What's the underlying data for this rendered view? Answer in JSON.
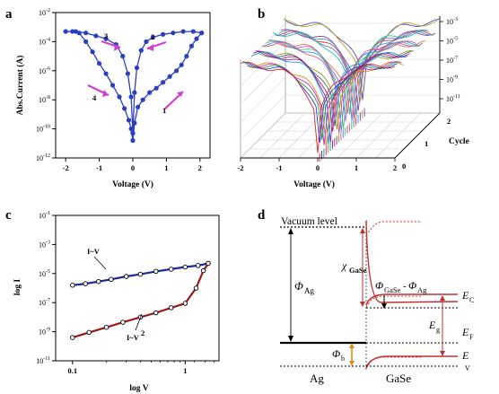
{
  "panels": {
    "a": {
      "label": "a"
    },
    "b": {
      "label": "b"
    },
    "c": {
      "label": "c"
    },
    "d": {
      "label": "d"
    }
  },
  "chart_data": [
    {
      "panel": "a",
      "type": "line",
      "xlabel": "Voltage (V)",
      "ylabel": "Abs.Current (A)",
      "xlim": [
        -2.3,
        2.3
      ],
      "ylim_log10": [
        -12,
        -2
      ],
      "x_ticks": [
        "-2",
        "-1",
        "0",
        "1",
        "2"
      ],
      "y_ticks": [
        "10-2",
        "10-4",
        "10-6",
        "10-8",
        "10-10",
        "10-12"
      ],
      "sweep_labels": [
        "1",
        "2",
        "3",
        "4"
      ],
      "series": [
        {
          "x": [
            0,
            0.05,
            0.15,
            0.3,
            0.5,
            0.7,
            0.9,
            1.1,
            1.3,
            1.45,
            1.6,
            1.75,
            1.9,
            2.05
          ],
          "y_log10": [
            -10.8,
            -9.6,
            -8.5,
            -8.0,
            -7.5,
            -7.2,
            -6.8,
            -6.4,
            -6.0,
            -5.6,
            -5.0,
            -4.3,
            -3.8,
            -3.4
          ]
        },
        {
          "x": [
            2.05,
            1.8,
            1.5,
            1.2,
            0.9,
            0.6,
            0.4,
            0.25,
            0.12,
            0.05,
            0
          ],
          "y_log10": [
            -3.4,
            -3.3,
            -3.3,
            -3.4,
            -3.5,
            -3.7,
            -4.0,
            -4.6,
            -5.8,
            -7.5,
            -10.3
          ]
        },
        {
          "x": [
            0,
            -0.05,
            -0.15,
            -0.3,
            -0.5,
            -0.8,
            -1.1,
            -1.4,
            -1.7,
            -2.0
          ],
          "y_log10": [
            -10.3,
            -7.8,
            -6.2,
            -5.0,
            -4.2,
            -3.8,
            -3.6,
            -3.4,
            -3.3,
            -3.3
          ]
        },
        {
          "x": [
            -2.0,
            -1.8,
            -1.6,
            -1.4,
            -1.2,
            -1.0,
            -0.8,
            -0.6,
            -0.4,
            -0.25,
            -0.12,
            -0.05,
            0
          ],
          "y_log10": [
            -3.3,
            -3.3,
            -3.4,
            -4.0,
            -4.7,
            -5.5,
            -6.2,
            -7.0,
            -7.8,
            -8.6,
            -9.4,
            -10.0,
            -10.8
          ]
        }
      ],
      "color": "#2a3fbf"
    },
    {
      "panel": "b",
      "type": "line",
      "xlabel": "Voltage (V)",
      "zlabel": "Cycle",
      "x_ticks": [
        "-2",
        "-1",
        "0",
        "1",
        "2"
      ],
      "depth_ticks": [
        "0",
        "1",
        "2"
      ],
      "z_ticks": [
        "10-3",
        "10-5",
        "10-7",
        "10-9",
        "10-11"
      ],
      "cycles": 22
    },
    {
      "panel": "c",
      "type": "line",
      "xlabel": "log V",
      "ylabel": "log I",
      "x_log10_range": [
        -1.15,
        0.3
      ],
      "y_log10_range": [
        -11,
        -1
      ],
      "x_ticks": [
        "0.1",
        "1"
      ],
      "y_ticks": [
        "10-1",
        "10-3",
        "10-5",
        "10-7",
        "10-9",
        "10-11"
      ],
      "series": [
        {
          "name": "I~V",
          "x": [
            0.1,
            0.13,
            0.17,
            0.22,
            0.3,
            0.4,
            0.55,
            0.75,
            1.0,
            1.3,
            1.6
          ],
          "y_log10": [
            -5.8,
            -5.7,
            -5.55,
            -5.4,
            -5.2,
            -5.05,
            -4.85,
            -4.7,
            -4.55,
            -4.45,
            -4.3
          ],
          "color": "#1a2a9a"
        },
        {
          "name": "I~V2",
          "x": [
            0.1,
            0.14,
            0.2,
            0.28,
            0.4,
            0.55,
            0.75,
            1.0,
            1.25,
            1.45,
            1.6
          ],
          "y_log10": [
            -9.4,
            -9.05,
            -8.7,
            -8.35,
            -8.0,
            -7.7,
            -7.35,
            -7.05,
            -6.0,
            -4.8,
            -4.3
          ],
          "color": "#9a1a1a"
        }
      ]
    }
  ],
  "band_diagram": {
    "vacuum_level": "Vacuum level",
    "phi_ag": "ΦAg",
    "chi": "χGaSe",
    "phi_diff": "ΦGaSe-ΦAg",
    "phi_b": "Φb",
    "ec": "EC",
    "eg": "Eg",
    "ef": "EF",
    "ev": "E",
    "ev_sub": "V",
    "ag": "Ag",
    "gase": "GaSe"
  }
}
